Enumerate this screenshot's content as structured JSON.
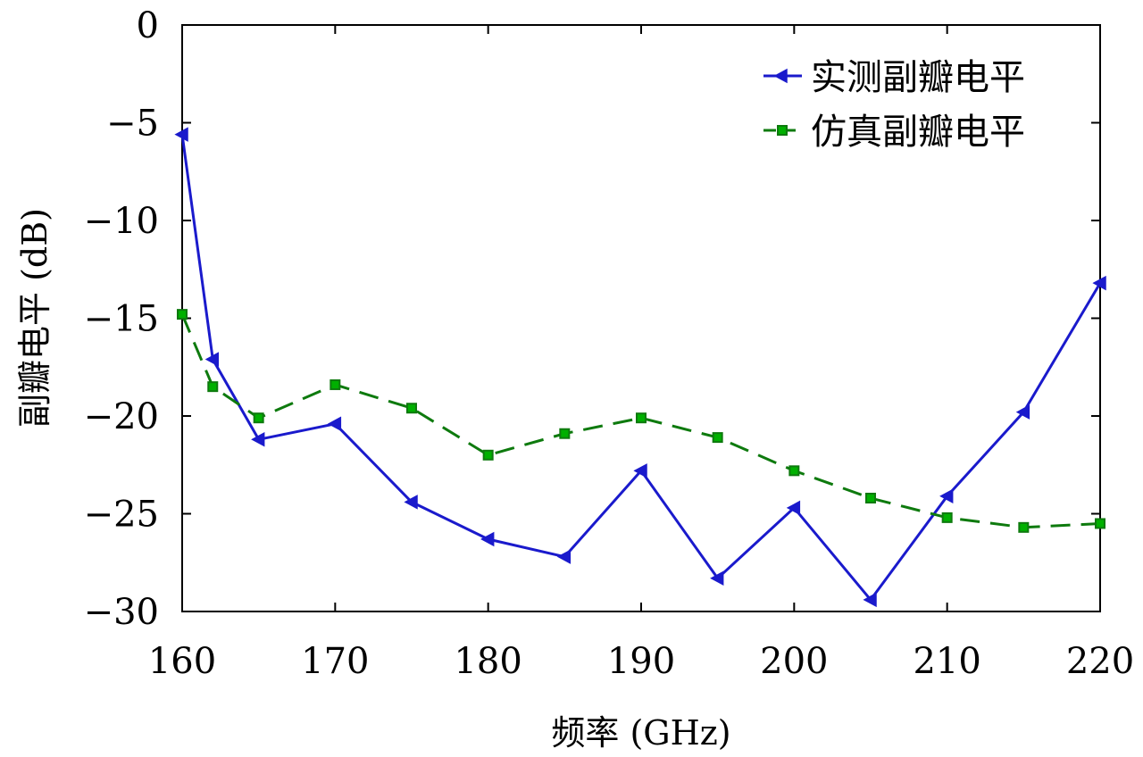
{
  "chart_data": {
    "type": "line",
    "title": "",
    "xlabel": "频率 (GHz)",
    "ylabel": "副瓣电平 (dB)",
    "xlim": [
      160,
      220
    ],
    "ylim": [
      -30,
      0
    ],
    "xticks": [
      160,
      170,
      180,
      190,
      200,
      210,
      220
    ],
    "yticks": [
      0,
      -5,
      -10,
      -15,
      -20,
      -25,
      -30
    ],
    "grid": false,
    "legend_position": "top-right",
    "series": [
      {
        "name": "实测副瓣电平",
        "color": "#1a1acc",
        "line_style": "solid",
        "marker": "triangle-left",
        "x": [
          160,
          162,
          165,
          170,
          175,
          180,
          185,
          190,
          195,
          200,
          205,
          210,
          215,
          220
        ],
        "y": [
          -5.6,
          -17.1,
          -21.2,
          -20.4,
          -24.4,
          -26.3,
          -27.2,
          -22.8,
          -28.3,
          -24.7,
          -29.4,
          -24.1,
          -19.8,
          -13.2
        ]
      },
      {
        "name": "仿真副瓣电平",
        "color": "#0e7a0e",
        "marker_fill": "#00b000",
        "line_style": "dashed",
        "marker": "square",
        "x": [
          160,
          162,
          165,
          170,
          175,
          180,
          185,
          190,
          195,
          200,
          205,
          210,
          215,
          220
        ],
        "y": [
          -14.8,
          -18.5,
          -20.1,
          -18.4,
          -19.6,
          -22.0,
          -20.9,
          -20.1,
          -21.1,
          -22.8,
          -24.2,
          -25.2,
          -25.7,
          -25.5
        ]
      }
    ]
  }
}
